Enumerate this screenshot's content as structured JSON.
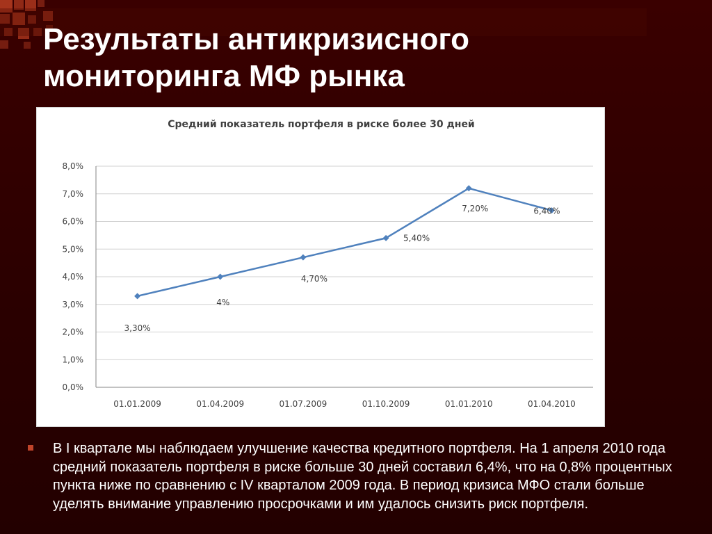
{
  "slide": {
    "title_lines": [
      "Результаты антикризисного",
      "мониторинга МФ рынка"
    ],
    "bullet": "В I квартале мы наблюдаем улучшение качества кредитного портфеля. На 1 апреля 2010 года средний показатель портфеля в риске больше 30 дней составил 6,4%, что на 0,8% процентных пункта ниже по сравнению с IV кварталом 2009 года.  В период кризиса МФО стали больше уделять внимание управлению просрочками и им удалось снизить риск портфеля."
  },
  "colors": {
    "background": "#2a0000",
    "line": "#4f81bd",
    "bullet": "#c0442a",
    "decor": "#b33a1f"
  },
  "chart_data": {
    "type": "line",
    "title": "Средний показатель портфеля в риске более 30 дней",
    "categories": [
      "01.01.2009",
      "01.04.2009",
      "01.07.2009",
      "01.10.2009",
      "01.01.2010",
      "01.04.2010"
    ],
    "series": [
      {
        "values": [
          3.3,
          4.0,
          4.7,
          5.4,
          7.2,
          6.4
        ]
      }
    ],
    "data_labels": [
      "3,30%",
      "4%",
      "4,70%",
      "5,40%",
      "7,20%",
      "6,40%"
    ],
    "ylim": [
      0,
      8
    ],
    "y_ticks": [
      0,
      1,
      2,
      3,
      4,
      5,
      6,
      7,
      8
    ],
    "y_tick_labels": [
      "0,0%",
      "1,0%",
      "2,0%",
      "3,0%",
      "4,0%",
      "5,0%",
      "6,0%",
      "7,0%",
      "8,0%"
    ],
    "grid": true,
    "legend": "none"
  }
}
